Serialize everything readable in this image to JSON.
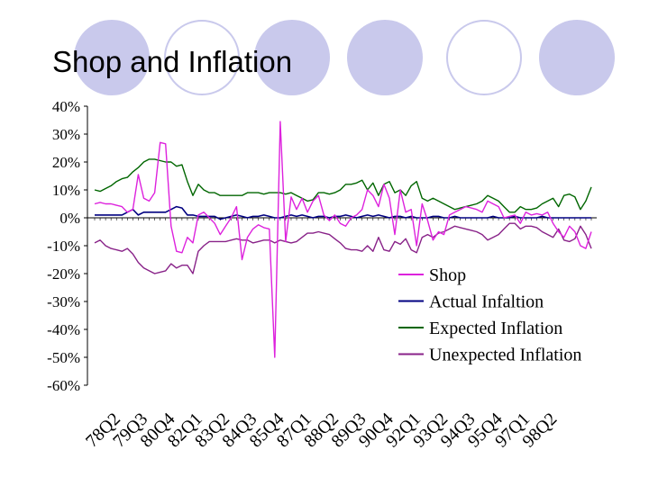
{
  "slide": {
    "title": "Shop and Inflation",
    "decoration_colors": {
      "fill": "#c9c9ec",
      "ring": "#c9c9ec"
    }
  },
  "chart_data": {
    "type": "line",
    "title": "",
    "xlabel": "",
    "ylabel": "",
    "ylim": [
      -0.6,
      0.4
    ],
    "y_ticks": [
      0.4,
      0.3,
      0.2,
      0.1,
      0.0,
      -0.1,
      -0.2,
      -0.3,
      -0.4,
      -0.5,
      -0.6
    ],
    "y_tick_labels": [
      "40%",
      "30%",
      "20%",
      "10%",
      "0%",
      "-10%",
      "-20%",
      "-30%",
      "-40%",
      "-50%",
      "-60%"
    ],
    "x_tick_labels": [
      "78Q2",
      "79Q3",
      "80Q4",
      "82Q1",
      "83Q2",
      "84Q3",
      "85Q4",
      "87Q1",
      "88Q2",
      "89Q3",
      "90Q4",
      "92Q1",
      "93Q2",
      "94Q3",
      "95Q4",
      "97Q1",
      "98Q2"
    ],
    "quarters_per_tick": 5,
    "gridlines": false,
    "legend_position": "bottom-right",
    "series": [
      {
        "name": "Shop",
        "color": "#dd22dd",
        "values": [
          0.05,
          0.055,
          0.05,
          0.05,
          0.045,
          0.04,
          0.02,
          0.03,
          0.155,
          0.07,
          0.06,
          0.09,
          0.27,
          0.265,
          -0.03,
          -0.12,
          -0.125,
          -0.07,
          -0.09,
          0.01,
          0.02,
          0.0,
          -0.02,
          -0.06,
          -0.03,
          0.0,
          0.04,
          -0.15,
          -0.07,
          -0.04,
          -0.025,
          -0.035,
          -0.04,
          -0.5,
          0.345,
          -0.085,
          0.075,
          0.03,
          0.07,
          0.02,
          0.06,
          0.08,
          0.01,
          -0.01,
          0.01,
          -0.02,
          -0.03,
          0.0,
          0.01,
          0.03,
          0.1,
          0.08,
          0.04,
          0.12,
          0.07,
          -0.06,
          0.1,
          0.02,
          0.03,
          -0.1,
          0.05,
          -0.01,
          -0.08,
          -0.05,
          -0.06,
          0.01,
          0.02,
          0.03,
          0.04,
          0.035,
          0.03,
          0.02,
          0.06,
          0.05,
          0.04,
          0.0,
          0.005,
          0.01,
          -0.02,
          0.02,
          0.01,
          0.015,
          0.01,
          0.02,
          -0.02,
          -0.05,
          -0.07,
          -0.03,
          -0.05,
          -0.1,
          -0.11,
          -0.05
        ]
      },
      {
        "name": "Actual Infaltion",
        "color": "#000080",
        "values": [
          0.01,
          0.01,
          0.01,
          0.01,
          0.01,
          0.01,
          0.02,
          0.03,
          0.01,
          0.02,
          0.02,
          0.02,
          0.02,
          0.02,
          0.03,
          0.04,
          0.035,
          0.01,
          0.01,
          0.005,
          0.005,
          0.005,
          0.005,
          -0.005,
          0.0,
          0.005,
          0.01,
          0.005,
          0.0,
          0.005,
          0.005,
          0.01,
          0.005,
          0.0,
          0.0,
          0.005,
          0.01,
          0.005,
          0.01,
          0.005,
          0.0,
          0.005,
          0.005,
          0.0,
          0.005,
          0.005,
          0.01,
          0.005,
          0.0,
          0.005,
          0.01,
          0.005,
          0.01,
          0.005,
          0.0,
          0.005,
          0.005,
          0.0,
          0.005,
          0.0,
          0.0,
          0.0,
          0.005,
          0.005,
          0.0,
          0.0,
          0.005,
          0.0,
          0.0,
          0.0,
          0.0,
          0.0,
          0.0,
          0.005,
          0.0,
          0.0,
          0.0,
          0.005,
          0.0,
          0.0,
          0.0,
          0.0,
          0.005,
          0.0,
          0.0,
          0.0,
          0.0,
          0.0,
          0.0,
          0.0,
          0.0,
          0.0
        ]
      },
      {
        "name": "Expected Inflation",
        "color": "#006600",
        "values": [
          0.1,
          0.095,
          0.105,
          0.115,
          0.13,
          0.14,
          0.145,
          0.165,
          0.18,
          0.2,
          0.21,
          0.21,
          0.205,
          0.2,
          0.2,
          0.185,
          0.19,
          0.13,
          0.08,
          0.12,
          0.1,
          0.09,
          0.09,
          0.08,
          0.08,
          0.08,
          0.08,
          0.08,
          0.09,
          0.09,
          0.09,
          0.085,
          0.09,
          0.09,
          0.09,
          0.085,
          0.09,
          0.08,
          0.07,
          0.06,
          0.065,
          0.09,
          0.09,
          0.085,
          0.09,
          0.1,
          0.12,
          0.12,
          0.125,
          0.135,
          0.1,
          0.125,
          0.08,
          0.12,
          0.13,
          0.09,
          0.1,
          0.08,
          0.115,
          0.13,
          0.07,
          0.06,
          0.07,
          0.06,
          0.05,
          0.04,
          0.03,
          0.035,
          0.04,
          0.045,
          0.05,
          0.06,
          0.08,
          0.07,
          0.06,
          0.04,
          0.02,
          0.02,
          0.04,
          0.03,
          0.03,
          0.035,
          0.05,
          0.06,
          0.07,
          0.04,
          0.08,
          0.085,
          0.075,
          0.03,
          0.06,
          0.11
        ]
      },
      {
        "name": "Unexpected Inflation",
        "color": "#882288",
        "values": [
          -0.09,
          -0.08,
          -0.1,
          -0.11,
          -0.115,
          -0.12,
          -0.11,
          -0.13,
          -0.16,
          -0.18,
          -0.19,
          -0.2,
          -0.195,
          -0.19,
          -0.165,
          -0.18,
          -0.17,
          -0.17,
          -0.2,
          -0.12,
          -0.1,
          -0.085,
          -0.085,
          -0.085,
          -0.085,
          -0.08,
          -0.075,
          -0.08,
          -0.08,
          -0.09,
          -0.085,
          -0.08,
          -0.08,
          -0.09,
          -0.08,
          -0.085,
          -0.09,
          -0.085,
          -0.07,
          -0.055,
          -0.055,
          -0.05,
          -0.055,
          -0.06,
          -0.075,
          -0.09,
          -0.11,
          -0.115,
          -0.115,
          -0.12,
          -0.1,
          -0.12,
          -0.07,
          -0.115,
          -0.12,
          -0.085,
          -0.095,
          -0.075,
          -0.115,
          -0.125,
          -0.07,
          -0.06,
          -0.07,
          -0.055,
          -0.05,
          -0.04,
          -0.03,
          -0.035,
          -0.04,
          -0.045,
          -0.05,
          -0.06,
          -0.08,
          -0.07,
          -0.06,
          -0.04,
          -0.02,
          -0.02,
          -0.04,
          -0.03,
          -0.03,
          -0.035,
          -0.05,
          -0.06,
          -0.07,
          -0.04,
          -0.08,
          -0.085,
          -0.075,
          -0.03,
          -0.06,
          -0.11
        ]
      }
    ]
  }
}
